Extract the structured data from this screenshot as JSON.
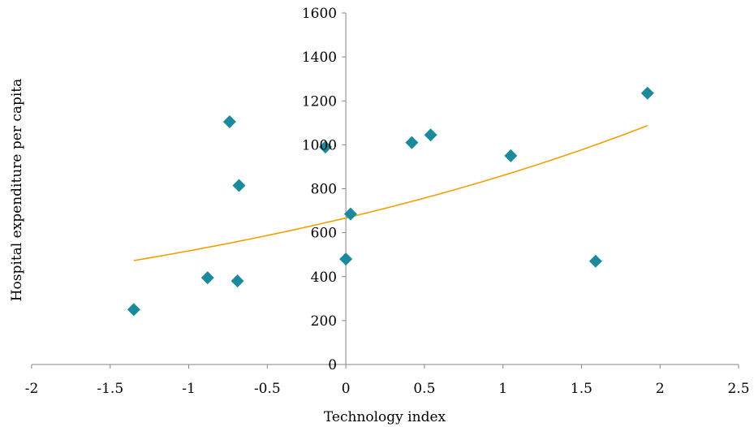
{
  "chart_data": {
    "type": "scatter",
    "xlabel": "Technology index",
    "ylabel": "Hospital expenditure per capita",
    "xlim": [
      -2,
      2.5
    ],
    "ylim": [
      0,
      1600
    ],
    "x_ticks": [
      "-2",
      "-1.5",
      "-1",
      "-0.5",
      "0",
      "0.5",
      "1",
      "1.5",
      "2",
      "2.5"
    ],
    "y_ticks": [
      "0",
      "200",
      "400",
      "600",
      "800",
      "1000",
      "1200",
      "1400",
      "1600"
    ],
    "grid": false,
    "legend": "none",
    "series": [
      {
        "marker": "diamond",
        "color": "#1a8a9c",
        "points": [
          {
            "x": -1.35,
            "y": 250
          },
          {
            "x": -0.88,
            "y": 395
          },
          {
            "x": -0.69,
            "y": 380
          },
          {
            "x": -0.74,
            "y": 1105
          },
          {
            "x": -0.68,
            "y": 815
          },
          {
            "x": -0.13,
            "y": 990
          },
          {
            "x": 0.03,
            "y": 685
          },
          {
            "x": 0.0,
            "y": 480
          },
          {
            "x": 0.42,
            "y": 1010
          },
          {
            "x": 0.54,
            "y": 1045
          },
          {
            "x": 1.05,
            "y": 950
          },
          {
            "x": 1.59,
            "y": 470
          },
          {
            "x": 1.92,
            "y": 1235
          }
        ]
      }
    ],
    "trendline": {
      "type": "exponential",
      "color": "#f0a000",
      "x_range": [
        -1.35,
        1.92
      ],
      "a": 667,
      "b": 0.2545
    }
  }
}
